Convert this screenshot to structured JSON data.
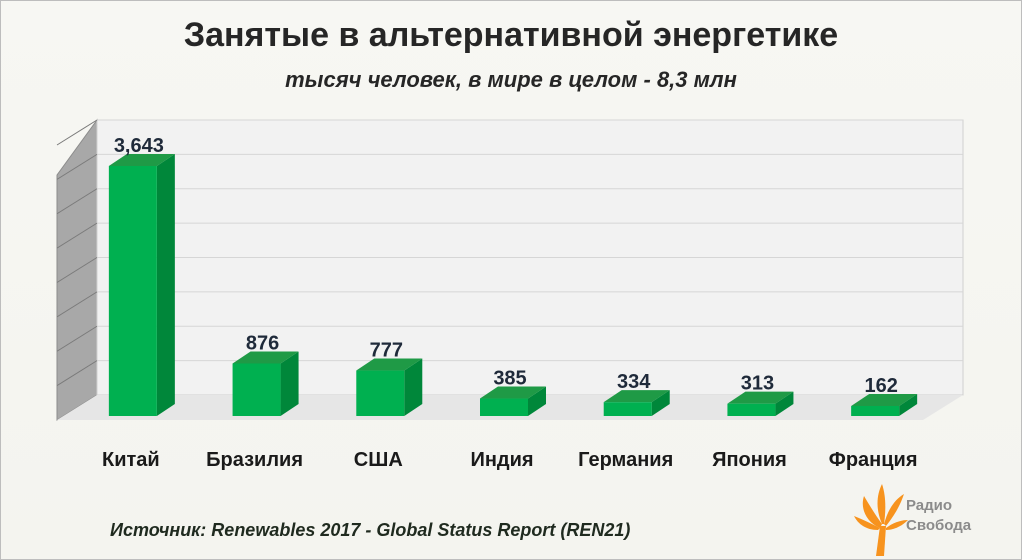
{
  "title": "Занятые в альтернативной энергетике",
  "subtitle": "тысяч человек, в мире в целом - 8,3 млн",
  "source": "Источник: Renewables 2017 - Global Status Report  (REN21)",
  "logo": {
    "line1": "Радио",
    "line2": "Свобода",
    "color": "#f7931e"
  },
  "colors": {
    "bar_front": "#00b050",
    "bar_side": "#00873a",
    "bar_top": "#1f9a46"
  },
  "chart_data": {
    "type": "bar",
    "title": "Занятые в альтернативной энергетике",
    "subtitle": "тысяч человек, в мире в целом - 8,3 млн",
    "categories": [
      "Китай",
      "Бразилия",
      "США",
      "Индия",
      "Германия",
      "Япония",
      "Франция"
    ],
    "values": [
      3643,
      876,
      777,
      385,
      334,
      313,
      162
    ],
    "data_labels": [
      "3,643",
      "876",
      "777",
      "385",
      "334",
      "313",
      "162"
    ],
    "ylim": [
      0,
      3643
    ],
    "grid": true,
    "legend": "none"
  }
}
